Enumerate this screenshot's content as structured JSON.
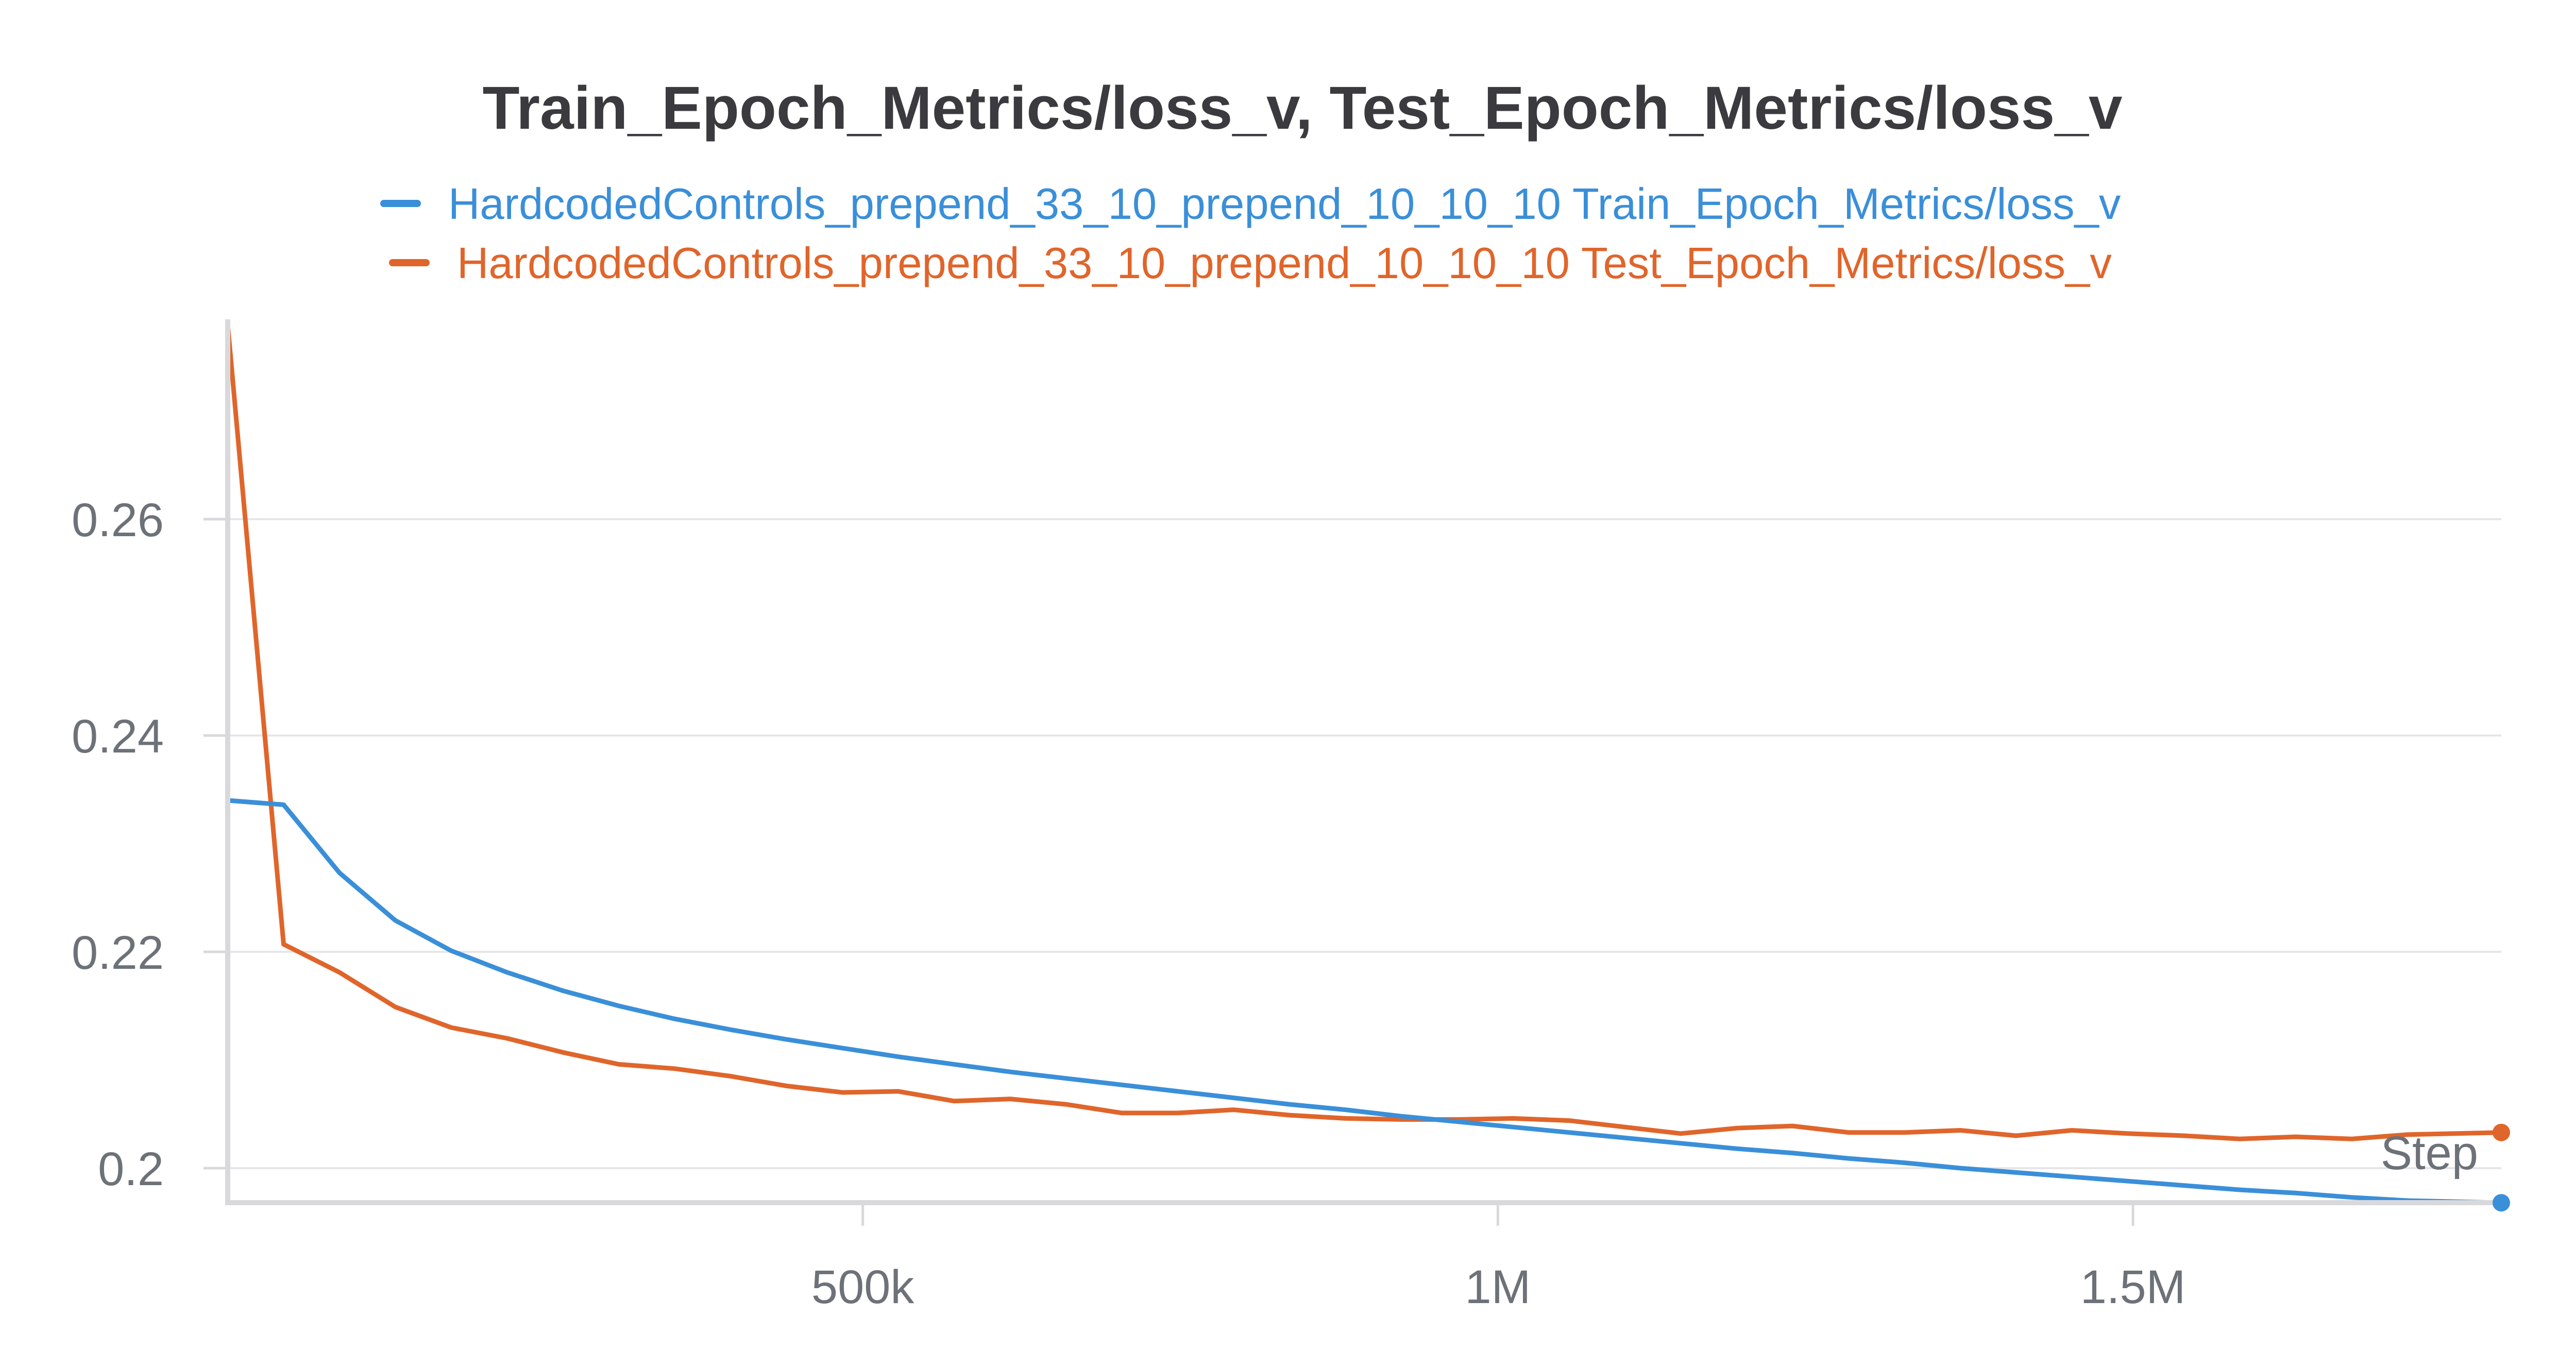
{
  "chart_data": {
    "type": "line",
    "title": "Train_Epoch_Metrics/loss_v, Test_Epoch_Metrics/loss_v",
    "xlabel": "Step",
    "ylabel": "",
    "xlim": [
      0,
      1790000
    ],
    "ylim": [
      0.197,
      0.278
    ],
    "x_ticks": [
      {
        "value": 500000,
        "label": "500k"
      },
      {
        "value": 1000000,
        "label": "1M"
      },
      {
        "value": 1500000,
        "label": "1.5M"
      }
    ],
    "y_ticks": [
      {
        "value": 0.2,
        "label": "0.2"
      },
      {
        "value": 0.22,
        "label": "0.22"
      },
      {
        "value": 0.24,
        "label": "0.24"
      },
      {
        "value": 0.26,
        "label": "0.26"
      }
    ],
    "grid": true,
    "legend_position": "top-center",
    "series": [
      {
        "name": "HardcodedControls_prepend_33_10_prepend_10_10_10 Train_Epoch_Metrics/loss_v",
        "color": "#3a8fd9",
        "x": [
          0,
          44000,
          88000,
          132000,
          176000,
          220000,
          264000,
          308000,
          352000,
          396000,
          440000,
          484000,
          528000,
          572000,
          616000,
          660000,
          704000,
          748000,
          792000,
          836000,
          880000,
          924000,
          968000,
          1012000,
          1056000,
          1100000,
          1144000,
          1188000,
          1232000,
          1276000,
          1320000,
          1364000,
          1408000,
          1452000,
          1496000,
          1540000,
          1584000,
          1628000,
          1672000,
          1716000,
          1790000
        ],
        "y": [
          0.234,
          0.2336,
          0.2273,
          0.2229,
          0.2201,
          0.2181,
          0.2164,
          0.215,
          0.2138,
          0.2128,
          0.2119,
          0.2111,
          0.2103,
          0.2096,
          0.2089,
          0.2083,
          0.2077,
          0.2071,
          0.2065,
          0.2059,
          0.2054,
          0.2048,
          0.2043,
          0.2038,
          0.2033,
          0.2028,
          0.2023,
          0.2018,
          0.2014,
          0.2009,
          0.2005,
          0.2,
          0.1996,
          0.1992,
          0.1988,
          0.1984,
          0.198,
          0.1977,
          0.1973,
          0.197,
          0.1968
        ]
      },
      {
        "name": "HardcodedControls_prepend_33_10_prepend_10_10_10 Test_Epoch_Metrics/loss_v",
        "color": "#e0652b",
        "x": [
          0,
          44000,
          88000,
          132000,
          176000,
          220000,
          264000,
          308000,
          352000,
          396000,
          440000,
          484000,
          528000,
          572000,
          616000,
          660000,
          704000,
          748000,
          792000,
          836000,
          880000,
          924000,
          968000,
          1012000,
          1056000,
          1100000,
          1144000,
          1188000,
          1232000,
          1276000,
          1320000,
          1364000,
          1408000,
          1452000,
          1496000,
          1540000,
          1584000,
          1628000,
          1672000,
          1716000,
          1790000
        ],
        "y": [
          0.278,
          0.2207,
          0.2181,
          0.2149,
          0.213,
          0.212,
          0.2107,
          0.2096,
          0.2092,
          0.2085,
          0.2076,
          0.207,
          0.2071,
          0.2062,
          0.2064,
          0.2059,
          0.2051,
          0.2051,
          0.2054,
          0.2049,
          0.2046,
          0.2045,
          0.2045,
          0.2046,
          0.2044,
          0.2038,
          0.2032,
          0.2037,
          0.2039,
          0.2033,
          0.2033,
          0.2035,
          0.203,
          0.2035,
          0.2032,
          0.203,
          0.2027,
          0.2029,
          0.2027,
          0.2031,
          0.2033
        ]
      }
    ]
  }
}
